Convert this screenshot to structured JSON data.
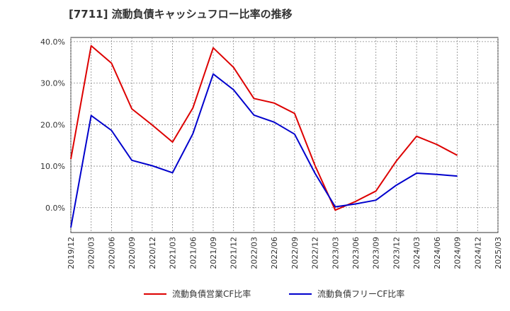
{
  "chart_data": {
    "type": "line",
    "title": "[7711]  流動負債キャッシュフロー比率の推移",
    "xlabel": "",
    "ylabel": "",
    "ylim": [
      -6,
      41
    ],
    "y_ticks": [
      40,
      30,
      20,
      10,
      0
    ],
    "y_tick_labels": [
      "40.0%",
      "30.0%",
      "20.0%",
      "10.0%",
      "0.0%"
    ],
    "grid": true,
    "legend_position": "bottom",
    "categories": [
      "2019/12",
      "2020/03",
      "2020/06",
      "2020/09",
      "2020/12",
      "2021/03",
      "2021/06",
      "2021/09",
      "2021/12",
      "2022/03",
      "2022/06",
      "2022/09",
      "2022/12",
      "2023/03",
      "2023/06",
      "2023/09",
      "2023/12",
      "2024/03",
      "2024/06",
      "2024/09",
      "2024/12",
      "2025/03"
    ],
    "series": [
      {
        "name": "流動負債営業CF比率",
        "color": "#dd0000",
        "values": [
          11.7,
          39.0,
          34.8,
          23.8,
          19.9,
          15.8,
          24.0,
          38.5,
          33.8,
          26.3,
          25.2,
          22.7,
          10.2,
          -0.6,
          1.5,
          4.0,
          11.2,
          17.2,
          15.2,
          12.6,
          null,
          null
        ]
      },
      {
        "name": "流動負債フリーCF比率",
        "color": "#0000cc",
        "values": [
          -4.8,
          22.2,
          18.6,
          11.4,
          10.1,
          8.4,
          17.8,
          32.2,
          28.4,
          22.3,
          20.6,
          17.7,
          8.3,
          0.2,
          0.9,
          1.8,
          5.4,
          8.3,
          8.0,
          7.6,
          null,
          null
        ]
      }
    ]
  }
}
